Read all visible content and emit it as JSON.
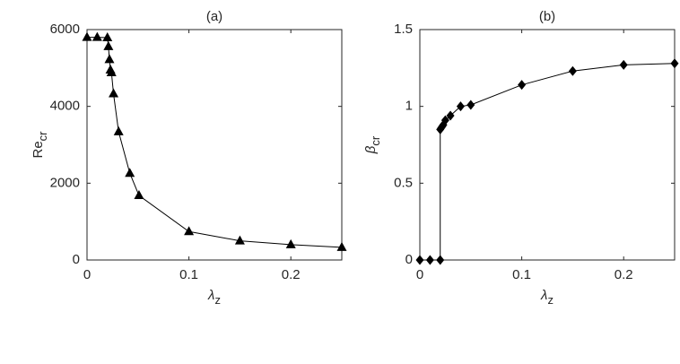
{
  "chart_data": [
    {
      "type": "line",
      "title": "(a)",
      "xlabel": "λ",
      "xlabel_subscript": "z",
      "ylabel": "Re",
      "ylabel_subscript": "cr",
      "marker": "triangle",
      "color": "#000000",
      "x": [
        0,
        0.01,
        0.02,
        0.021,
        0.022,
        0.023,
        0.024,
        0.026,
        0.031,
        0.042,
        0.051,
        0.1,
        0.15,
        0.2,
        0.25
      ],
      "values": [
        5800,
        5800,
        5790,
        5560,
        5220,
        4950,
        4880,
        4330,
        3340,
        2260,
        1680,
        740,
        500,
        400,
        330
      ],
      "xlim": [
        0,
        0.25
      ],
      "ylim": [
        0,
        6000
      ],
      "xticks": [
        0,
        0.1,
        0.2
      ],
      "yticks": [
        0,
        2000,
        4000,
        6000
      ]
    },
    {
      "type": "line",
      "title": "(b)",
      "xlabel": "λ",
      "xlabel_subscript": "z",
      "ylabel": "β",
      "ylabel_subscript": "cr",
      "marker": "diamond",
      "color": "#000000",
      "x": [
        0,
        0.01,
        0.02,
        0.02,
        0.021,
        0.022,
        0.023,
        0.025,
        0.03,
        0.04,
        0.05,
        0.1,
        0.15,
        0.2,
        0.25
      ],
      "values": [
        0,
        0,
        0,
        0.85,
        0.86,
        0.87,
        0.88,
        0.91,
        0.94,
        1.0,
        1.01,
        1.14,
        1.23,
        1.27,
        1.28
      ],
      "xlim": [
        0,
        0.25
      ],
      "ylim": [
        0,
        1.5
      ],
      "xticks": [
        0,
        0.1,
        0.2
      ],
      "yticks": [
        0,
        0.5,
        1,
        1.5
      ]
    }
  ]
}
